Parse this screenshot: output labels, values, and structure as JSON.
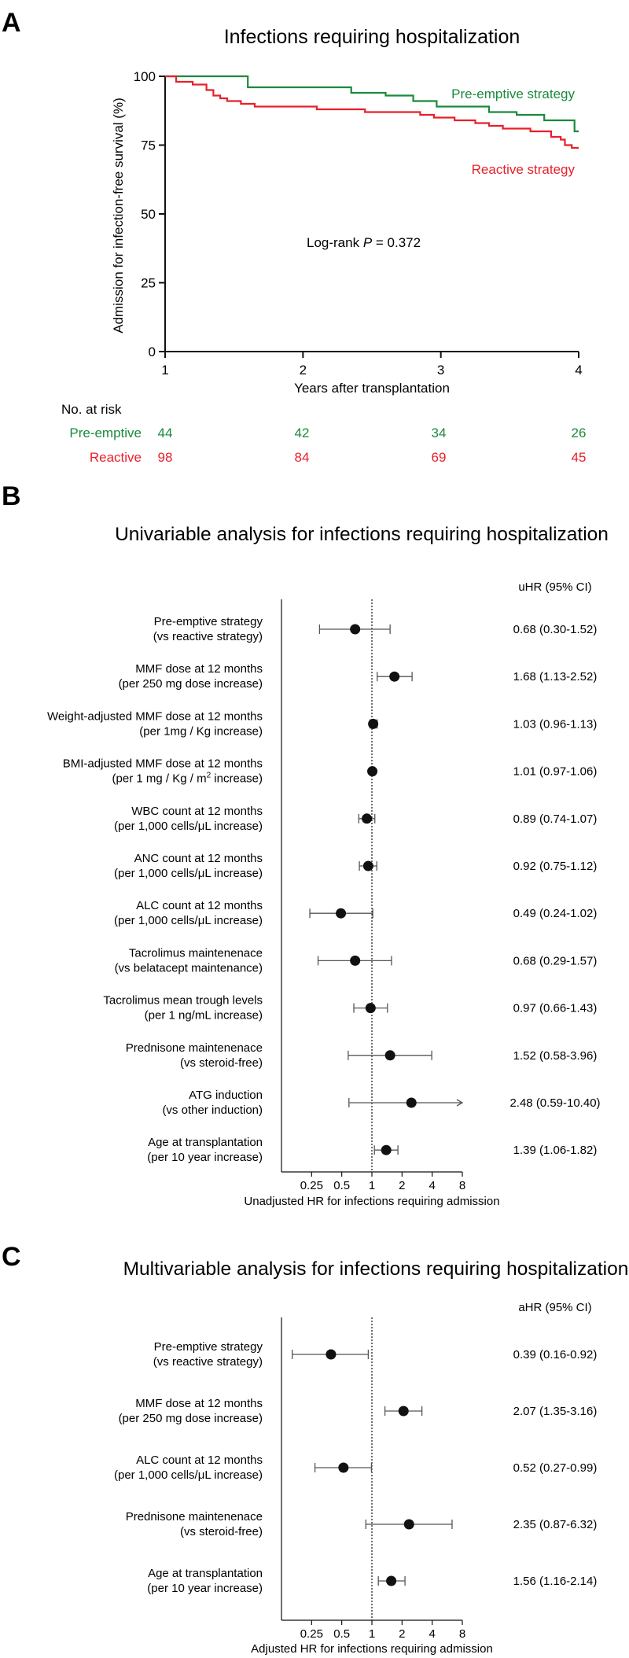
{
  "colors": {
    "preemptive": "#1a8a3c",
    "reactive": "#e8202a",
    "ink": "#111111"
  },
  "chart_data": [
    {
      "type": "line",
      "panel_label": "A",
      "title": "Infections requiring hospitalization",
      "xlabel": "Years after transplantation",
      "ylabel": "Admission for infection-free survival (%)",
      "xlim": [
        1,
        4
      ],
      "ylim": [
        0,
        100
      ],
      "xticks": [
        1,
        2,
        3,
        4
      ],
      "yticks": [
        0,
        25,
        50,
        75,
        100
      ],
      "annotation": {
        "prefix": "Log-rank ",
        "italic": "P",
        "suffix": " = 0.372"
      },
      "series": [
        {
          "name": "Pre-emptive strategy",
          "color": "#1a8a3c",
          "points": [
            [
              1.0,
              100
            ],
            [
              1.6,
              100
            ],
            [
              1.6,
              96
            ],
            [
              2.35,
              96
            ],
            [
              2.35,
              94
            ],
            [
              2.6,
              94
            ],
            [
              2.6,
              93
            ],
            [
              2.8,
              93
            ],
            [
              2.8,
              91
            ],
            [
              2.97,
              91
            ],
            [
              2.97,
              89
            ],
            [
              3.35,
              89
            ],
            [
              3.35,
              87
            ],
            [
              3.55,
              87
            ],
            [
              3.55,
              86
            ],
            [
              3.75,
              86
            ],
            [
              3.75,
              84
            ],
            [
              3.97,
              84
            ],
            [
              3.97,
              80
            ],
            [
              4.0,
              80
            ]
          ]
        },
        {
          "name": "Reactive strategy",
          "color": "#e8202a",
          "points": [
            [
              1.0,
              100
            ],
            [
              1.08,
              100
            ],
            [
              1.08,
              98
            ],
            [
              1.2,
              98
            ],
            [
              1.2,
              97
            ],
            [
              1.3,
              97
            ],
            [
              1.3,
              95
            ],
            [
              1.35,
              95
            ],
            [
              1.35,
              93
            ],
            [
              1.4,
              93
            ],
            [
              1.4,
              92
            ],
            [
              1.45,
              92
            ],
            [
              1.45,
              91
            ],
            [
              1.55,
              91
            ],
            [
              1.55,
              90
            ],
            [
              1.65,
              90
            ],
            [
              1.65,
              89
            ],
            [
              2.1,
              89
            ],
            [
              2.1,
              88
            ],
            [
              2.45,
              88
            ],
            [
              2.45,
              87
            ],
            [
              2.85,
              87
            ],
            [
              2.85,
              86
            ],
            [
              2.95,
              86
            ],
            [
              2.95,
              85
            ],
            [
              3.1,
              85
            ],
            [
              3.1,
              84
            ],
            [
              3.25,
              84
            ],
            [
              3.25,
              83
            ],
            [
              3.35,
              83
            ],
            [
              3.35,
              82
            ],
            [
              3.45,
              82
            ],
            [
              3.45,
              81
            ],
            [
              3.65,
              81
            ],
            [
              3.65,
              80
            ],
            [
              3.8,
              80
            ],
            [
              3.8,
              78
            ],
            [
              3.87,
              78
            ],
            [
              3.87,
              77
            ],
            [
              3.9,
              77
            ],
            [
              3.9,
              75
            ],
            [
              3.95,
              75
            ],
            [
              3.95,
              74
            ],
            [
              4.0,
              74
            ]
          ]
        }
      ],
      "at_risk": {
        "title": "No. at risk",
        "rows": [
          {
            "name": "Pre-emptive",
            "color": "#1a8a3c",
            "values": [
              "44",
              "42",
              "34",
              "26"
            ]
          },
          {
            "name": "Reactive",
            "color": "#e8202a",
            "values": [
              "98",
              "84",
              "69",
              "45"
            ]
          }
        ]
      }
    },
    {
      "type": "scatter",
      "subtype": "forest",
      "panel_label": "B",
      "title": "Univariable analysis for infections requiring hospitalization",
      "xlabel": "Unadjusted HR for infections requiring admission",
      "x_scale": "log2",
      "xlim": [
        0.125,
        8
      ],
      "xticks": [
        "0.25",
        "0.5",
        "1",
        "2",
        "4",
        "8"
      ],
      "ci_header": "uHR (95% CI)",
      "rows": [
        {
          "label1": "Pre-emptive strategy",
          "label2": "(vs reactive strategy)",
          "hr": 0.68,
          "lo": 0.3,
          "hi": 1.52,
          "ci_text": "0.68 (0.30-1.52)"
        },
        {
          "label1": "MMF dose at 12 months",
          "label2": "(per 250 mg dose increase)",
          "hr": 1.68,
          "lo": 1.13,
          "hi": 2.52,
          "ci_text": "1.68 (1.13-2.52)"
        },
        {
          "label1": "Weight-adjusted MMF dose at 12 months",
          "label2": "(per 1mg / Kg increase)",
          "hr": 1.03,
          "lo": 0.96,
          "hi": 1.13,
          "ci_text": "1.03 (0.96-1.13)"
        },
        {
          "label1": "BMI-adjusted MMF dose at 12 months",
          "label2_pre": "(per 1 mg / Kg / m",
          "label2_sup": "2",
          "label2_post": " increase)",
          "hr": 1.01,
          "lo": 0.97,
          "hi": 1.06,
          "ci_text": "1.01 (0.97-1.06)"
        },
        {
          "label1": "WBC count at 12 months",
          "label2": "(per 1,000 cells/μL increase)",
          "hr": 0.89,
          "lo": 0.74,
          "hi": 1.07,
          "ci_text": "0.89 (0.74-1.07)"
        },
        {
          "label1": "ANC count at 12 months",
          "label2": "(per 1,000 cells/μL increase)",
          "hr": 0.92,
          "lo": 0.75,
          "hi": 1.12,
          "ci_text": "0.92 (0.75-1.12)"
        },
        {
          "label1": "ALC count at 12 months",
          "label2": "(per 1,000 cells/μL increase)",
          "hr": 0.49,
          "lo": 0.24,
          "hi": 1.02,
          "ci_text": "0.49 (0.24-1.02)"
        },
        {
          "label1": "Tacrolimus maintenenace",
          "label2": "(vs belatacept maintenance)",
          "hr": 0.68,
          "lo": 0.29,
          "hi": 1.57,
          "ci_text": "0.68 (0.29-1.57)"
        },
        {
          "label1": "Tacrolimus mean trough levels",
          "label2": "(per 1 ng/mL increase)",
          "hr": 0.97,
          "lo": 0.66,
          "hi": 1.43,
          "ci_text": "0.97 (0.66-1.43)"
        },
        {
          "label1": "Prednisone maintenenace",
          "label2": "(vs steroid-free)",
          "hr": 1.52,
          "lo": 0.58,
          "hi": 3.96,
          "ci_text": "1.52 (0.58-3.96)"
        },
        {
          "label1": "ATG induction",
          "label2": "(vs other induction)",
          "hr": 2.48,
          "lo": 0.59,
          "hi": 10.4,
          "ci_text": "2.48 (0.59-10.40)"
        },
        {
          "label1": "Age at transplantation",
          "label2": "(per 10 year increase)",
          "hr": 1.39,
          "lo": 1.06,
          "hi": 1.82,
          "ci_text": "1.39 (1.06-1.82)"
        }
      ]
    },
    {
      "type": "scatter",
      "subtype": "forest",
      "panel_label": "C",
      "title": "Multivariable analysis for infections requiring hospitalization",
      "xlabel": "Adjusted HR for infections requiring admission",
      "x_scale": "log2",
      "xlim": [
        0.125,
        8
      ],
      "xticks": [
        "0.25",
        "0.5",
        "1",
        "2",
        "4",
        "8"
      ],
      "ci_header": "aHR (95% CI)",
      "rows": [
        {
          "label1": "Pre-emptive strategy",
          "label2": "(vs reactive strategy)",
          "hr": 0.39,
          "lo": 0.16,
          "hi": 0.92,
          "ci_text": "0.39 (0.16-0.92)"
        },
        {
          "label1": "MMF dose at 12 months",
          "label2": "(per 250 mg dose increase)",
          "hr": 2.07,
          "lo": 1.35,
          "hi": 3.16,
          "ci_text": "2.07 (1.35-3.16)"
        },
        {
          "label1": "ALC count at 12 months",
          "label2": "(per 1,000 cells/μL increase)",
          "hr": 0.52,
          "lo": 0.27,
          "hi": 0.99,
          "ci_text": "0.52 (0.27-0.99)"
        },
        {
          "label1": "Prednisone maintenenace",
          "label2": "(vs steroid-free)",
          "hr": 2.35,
          "lo": 0.87,
          "hi": 6.32,
          "ci_text": "2.35 (0.87-6.32)"
        },
        {
          "label1": "Age at transplantation",
          "label2": "(per 10 year increase)",
          "hr": 1.56,
          "lo": 1.16,
          "hi": 2.14,
          "ci_text": "1.56 (1.16-2.14)"
        }
      ]
    }
  ]
}
